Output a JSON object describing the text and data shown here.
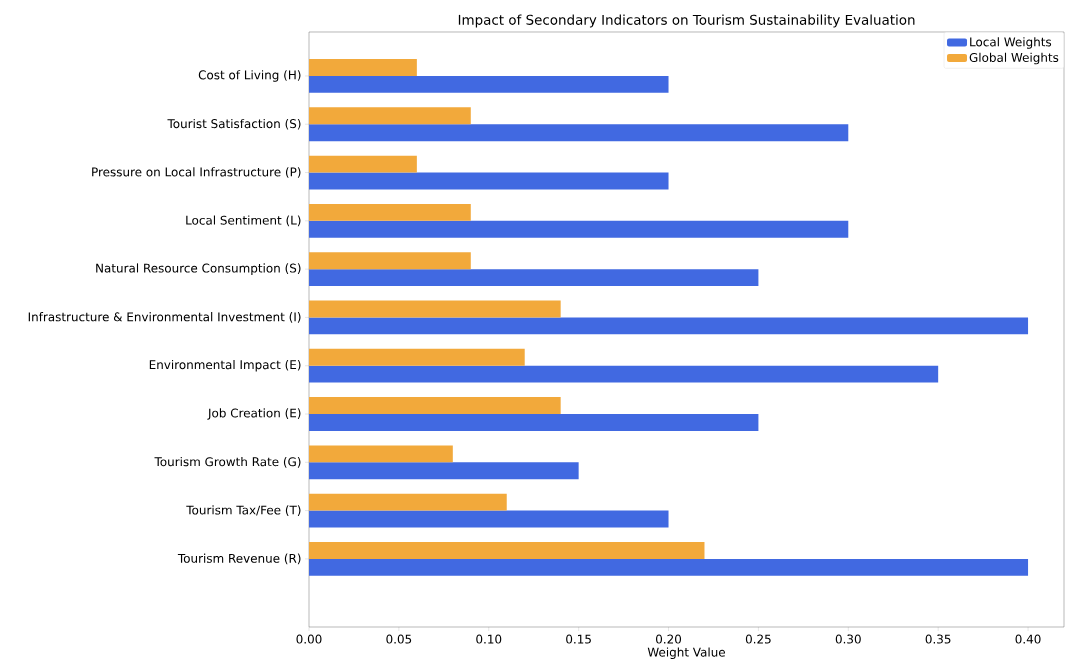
{
  "chart_data": {
    "type": "bar",
    "orientation": "horizontal",
    "title": "Impact of Secondary Indicators on Tourism Sustainability Evaluation",
    "xlabel": "Weight Value",
    "categories": [
      "Cost of Living (H)",
      "Tourist Satisfaction (S)",
      "Pressure on Local Infrastructure (P)",
      "Local Sentiment (L)",
      "Natural Resource Consumption (S)",
      "Infrastructure & Environmental Investment (I)",
      "Environmental Impact (E)",
      "Job Creation (E)",
      "Tourism Growth Rate (G)",
      "Tourism Tax/Fee (T)",
      "Tourism Revenue (R)"
    ],
    "series": [
      {
        "name": "Local Weights",
        "color": "#4169e1",
        "values": [
          0.2,
          0.3,
          0.2,
          0.3,
          0.25,
          0.4,
          0.35,
          0.25,
          0.15,
          0.2,
          0.4
        ]
      },
      {
        "name": "Global Weights",
        "color": "#f2a93b",
        "values": [
          0.06,
          0.09,
          0.06,
          0.09,
          0.09,
          0.14,
          0.12,
          0.14,
          0.08,
          0.11,
          0.22
        ]
      }
    ],
    "xlim": [
      0,
      0.42
    ],
    "xticks": [
      {
        "value": 0,
        "label": "0.00"
      },
      {
        "value": 0.05,
        "label": "0.05"
      },
      {
        "value": 0.1,
        "label": "0.10"
      },
      {
        "value": 0.15,
        "label": "0.15"
      },
      {
        "value": 0.2,
        "label": "0.20"
      },
      {
        "value": 0.25,
        "label": "0.25"
      },
      {
        "value": 0.3,
        "label": "0.30"
      },
      {
        "value": 0.35,
        "label": "0.35"
      },
      {
        "value": 0.4,
        "label": "0.40"
      }
    ],
    "legend": "top right"
  }
}
